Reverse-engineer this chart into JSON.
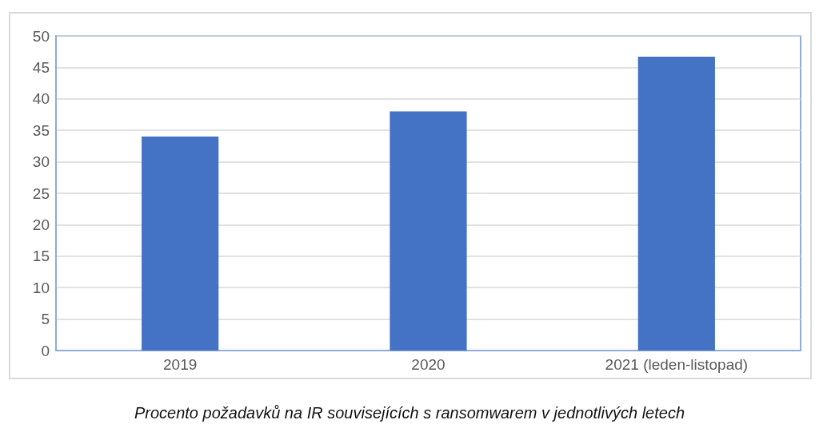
{
  "chart_data": {
    "type": "bar",
    "categories": [
      "2019",
      "2020",
      "2021 (leden-listopad)"
    ],
    "values": [
      34,
      38,
      46.7
    ],
    "color": "#4472c4",
    "ylim": [
      0,
      50
    ],
    "yticks": [
      0,
      5,
      10,
      15,
      20,
      25,
      30,
      35,
      40,
      45,
      50
    ],
    "grid": "y",
    "annotations": [
      "Procento požadavků na IR souvisejících s ransomwarem v jednotlivých letech"
    ]
  }
}
